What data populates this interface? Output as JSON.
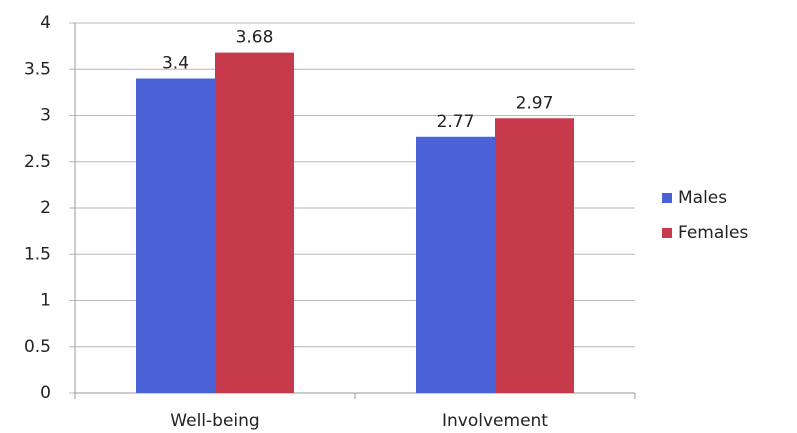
{
  "chart_data": {
    "type": "bar",
    "categories": [
      "Well-being",
      "Involvement"
    ],
    "series": [
      {
        "name": "Males",
        "color": "#4a62d6",
        "values": [
          3.4,
          2.77
        ]
      },
      {
        "name": "Females",
        "color": "#c63a4c",
        "values": [
          3.68,
          2.97
        ]
      }
    ],
    "ylim": [
      0,
      4
    ],
    "yticks": [
      0,
      0.5,
      1,
      1.5,
      2,
      2.5,
      3,
      3.5,
      4
    ],
    "grid": true,
    "legend": "right"
  }
}
